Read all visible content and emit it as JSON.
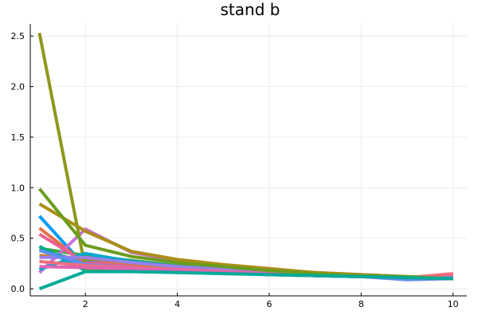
{
  "chart_data": {
    "type": "line",
    "title": "stand b",
    "xlabel": "",
    "ylabel": "",
    "xlim": [
      0.8,
      10.3
    ],
    "ylim": [
      -0.07,
      2.62
    ],
    "xticks": [
      2,
      4,
      6,
      8,
      10
    ],
    "xtick_labels": [
      "2",
      "4",
      "6",
      "8",
      "10"
    ],
    "yticks": [
      0.0,
      0.5,
      1.0,
      1.5,
      2.0,
      2.5
    ],
    "ytick_labels": [
      "0.0",
      "0.5",
      "1.0",
      "1.5",
      "2.0",
      "2.5"
    ],
    "grid": true,
    "legend": "none",
    "x": [
      1,
      2,
      3,
      4,
      5,
      6,
      7,
      8,
      9,
      10
    ],
    "series": [
      {
        "color": "#009AFA",
        "values": [
          0.72,
          0.22,
          0.21,
          0.18,
          0.16,
          0.14,
          0.13,
          0.12,
          0.11,
          0.1
        ]
      },
      {
        "color": "#E36F47",
        "values": [
          0.6,
          0.25,
          0.22,
          0.19,
          0.17,
          0.15,
          0.13,
          0.12,
          0.11,
          0.11
        ]
      },
      {
        "color": "#3EA44E",
        "values": [
          0.4,
          0.33,
          0.28,
          0.23,
          0.2,
          0.17,
          0.15,
          0.13,
          0.11,
          0.1
        ]
      },
      {
        "color": "#C371D2",
        "values": [
          0.16,
          0.59,
          0.36,
          0.28,
          0.23,
          0.19,
          0.16,
          0.14,
          0.12,
          0.1
        ]
      },
      {
        "color": "#AC8E18",
        "values": [
          0.84,
          0.57,
          0.37,
          0.29,
          0.24,
          0.2,
          0.16,
          0.14,
          0.12,
          0.11
        ]
      },
      {
        "color": "#00A9AD",
        "values": [
          0.38,
          0.27,
          0.22,
          0.19,
          0.17,
          0.15,
          0.13,
          0.12,
          0.11,
          0.11
        ]
      },
      {
        "color": "#ED5E93",
        "values": [
          0.54,
          0.26,
          0.23,
          0.2,
          0.17,
          0.15,
          0.14,
          0.12,
          0.11,
          0.12
        ]
      },
      {
        "color": "#C68225",
        "values": [
          0.33,
          0.3,
          0.25,
          0.21,
          0.18,
          0.16,
          0.14,
          0.13,
          0.11,
          0.11
        ]
      },
      {
        "color": "#00A98D",
        "values": [
          0.42,
          0.18,
          0.18,
          0.17,
          0.16,
          0.15,
          0.13,
          0.12,
          0.11,
          0.1
        ]
      },
      {
        "color": "#8E971D",
        "values": [
          2.53,
          0.2,
          0.19,
          0.17,
          0.16,
          0.14,
          0.13,
          0.12,
          0.11,
          0.1
        ]
      },
      {
        "color": "#00A8CB",
        "values": [
          0.19,
          0.35,
          0.27,
          0.22,
          0.19,
          0.16,
          0.14,
          0.13,
          0.11,
          0.11
        ]
      },
      {
        "color": "#9B7FE9",
        "values": [
          0.31,
          0.31,
          0.26,
          0.22,
          0.19,
          0.16,
          0.14,
          0.13,
          0.11,
          0.11
        ]
      },
      {
        "color": "#618DF6",
        "values": [
          0.38,
          0.24,
          0.21,
          0.19,
          0.17,
          0.15,
          0.13,
          0.12,
          0.09,
          0.1
        ]
      },
      {
        "color": "#F16C7E",
        "values": [
          0.27,
          0.23,
          0.21,
          0.19,
          0.17,
          0.15,
          0.14,
          0.12,
          0.11,
          0.15
        ]
      },
      {
        "color": "#DD64B5",
        "values": [
          0.22,
          0.21,
          0.2,
          0.18,
          0.16,
          0.15,
          0.13,
          0.12,
          0.11,
          0.1
        ]
      },
      {
        "color": "#6B9D1E",
        "values": [
          0.99,
          0.43,
          0.32,
          0.26,
          0.22,
          0.18,
          0.15,
          0.13,
          0.12,
          0.1
        ]
      },
      {
        "color": "#00AA9A",
        "values": [
          0.0,
          0.17,
          0.17,
          0.16,
          0.15,
          0.14,
          0.13,
          0.12,
          0.11,
          0.1
        ]
      }
    ]
  }
}
